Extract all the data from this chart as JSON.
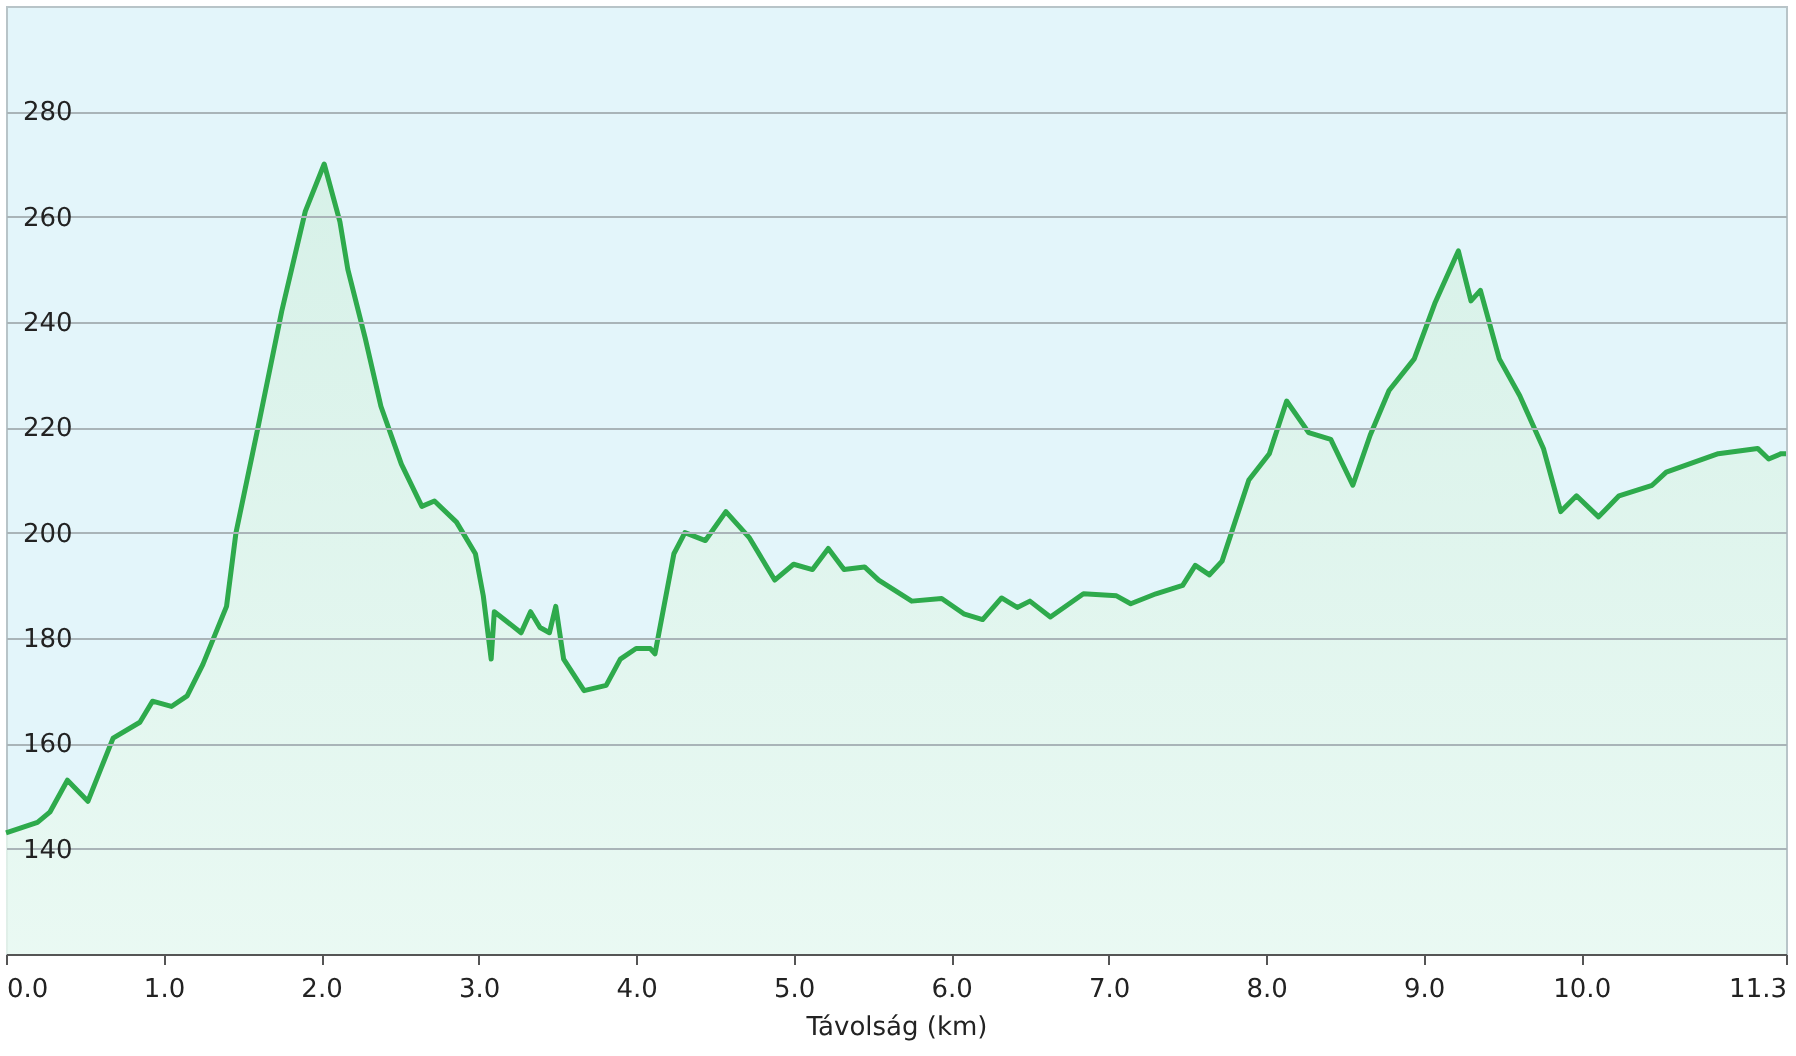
{
  "chart_data": {
    "type": "area",
    "xlabel": "Távolság  (km)",
    "x": [
      0,
      0.1,
      0.2,
      0.28,
      0.39,
      0.52,
      0.6,
      0.68,
      0.85,
      0.93,
      1.05,
      1.15,
      1.25,
      1.4,
      1.46,
      1.6,
      1.75,
      1.9,
      2.02,
      2.12,
      2.17,
      2.28,
      2.38,
      2.51,
      2.64,
      2.72,
      2.86,
      2.98,
      3.03,
      3.08,
      3.1,
      3.27,
      3.33,
      3.39,
      3.45,
      3.49,
      3.54,
      3.67,
      3.81,
      3.9,
      4.0,
      4.09,
      4.12,
      4.24,
      4.31,
      4.44,
      4.57,
      4.72,
      4.88,
      5.0,
      5.12,
      5.22,
      5.32,
      5.45,
      5.54,
      5.75,
      5.94,
      6.08,
      6.2,
      6.32,
      6.42,
      6.5,
      6.63,
      6.84,
      7.05,
      7.14,
      7.3,
      7.47,
      7.55,
      7.64,
      7.72,
      7.89,
      8.02,
      8.13,
      8.27,
      8.41,
      8.55,
      8.66,
      8.78,
      8.94,
      9.07,
      9.22,
      9.3,
      9.36,
      9.48,
      9.61,
      9.76,
      9.87,
      9.97,
      10.11,
      10.24,
      10.45,
      10.54,
      10.87,
      11.12,
      11.19,
      11.27,
      11.3
    ],
    "series": [
      {
        "color": "#2eaa4c",
        "values": [
          143,
          144,
          145,
          147,
          153,
          149,
          155,
          161,
          164,
          168,
          167,
          169,
          175,
          186,
          200,
          220,
          242,
          261,
          270,
          259,
          250,
          237,
          224,
          213,
          205,
          206,
          202,
          196,
          188,
          176,
          185,
          181,
          185,
          182,
          181,
          186,
          176,
          170,
          171,
          176,
          178,
          178,
          177,
          196,
          200,
          198.5,
          204,
          199,
          191,
          194,
          193,
          197,
          193,
          193.5,
          191,
          187,
          187.5,
          184.6,
          183.5,
          187.6,
          185.8,
          187,
          184,
          188.4,
          188,
          186.5,
          188.4,
          190,
          193.8,
          192,
          194.6,
          210,
          215,
          225,
          219,
          217.7,
          209,
          218.5,
          227,
          233,
          243.5,
          253.5,
          244,
          246,
          233,
          226,
          216,
          204,
          207,
          203,
          207,
          209,
          211.5,
          215,
          216,
          214,
          215,
          215
        ]
      }
    ],
    "xlim": [
      0,
      11.3
    ],
    "xticks": [
      {
        "value": 0,
        "label": "0.0"
      },
      {
        "value": 1,
        "label": "1.0"
      },
      {
        "value": 2,
        "label": "2.0"
      },
      {
        "value": 3,
        "label": "3.0"
      },
      {
        "value": 4,
        "label": "4.0"
      },
      {
        "value": 5,
        "label": "5.0"
      },
      {
        "value": 6,
        "label": "6.0"
      },
      {
        "value": 7,
        "label": "7.0"
      },
      {
        "value": 8,
        "label": "8.0"
      },
      {
        "value": 9,
        "label": "9.0"
      },
      {
        "value": 10,
        "label": "10.0"
      },
      11.3
    ],
    "ylim": [
      120,
      300
    ],
    "yticks": [
      140,
      160,
      180,
      200,
      220,
      240,
      260,
      280
    ],
    "grid": "y",
    "marker": "none",
    "legend": false
  }
}
